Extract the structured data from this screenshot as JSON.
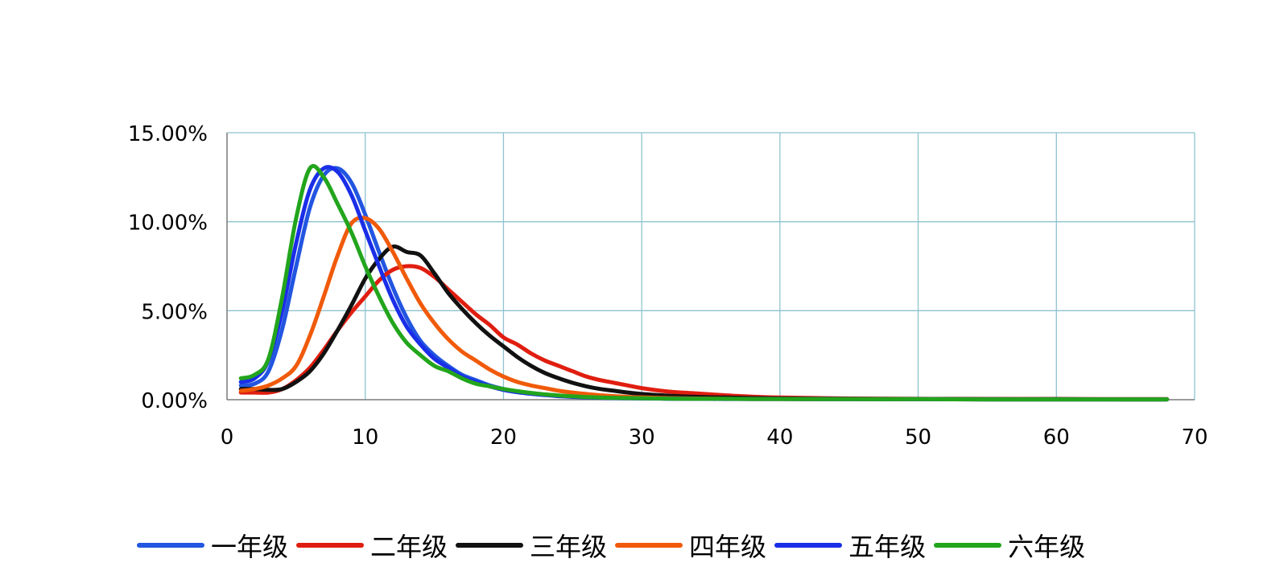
{
  "chart_data": {
    "type": "line",
    "title": "",
    "xlabel": "",
    "ylabel": "",
    "xlim": [
      0,
      70
    ],
    "ylim": [
      0,
      15
    ],
    "x_ticks": [
      "0",
      "10",
      "20",
      "30",
      "40",
      "50",
      "60",
      "70"
    ],
    "y_ticks": [
      "0.00%",
      "5.00%",
      "10.00%",
      "15.00%"
    ],
    "grid": true,
    "legend_position": "bottom",
    "x": [
      1,
      2,
      3,
      4,
      5,
      6,
      7,
      8,
      9,
      10,
      11,
      12,
      13,
      14,
      15,
      16,
      17,
      18,
      19,
      20,
      21,
      22,
      23,
      24,
      25,
      26,
      27,
      28,
      29,
      30,
      32,
      34,
      36,
      38,
      40,
      45,
      50,
      55,
      60,
      65,
      68
    ],
    "series": [
      {
        "name": "一年级",
        "color": "#2255e0",
        "values": [
          0.8,
          0.9,
          1.6,
          4.0,
          7.5,
          10.8,
          12.6,
          13.0,
          12.2,
          10.4,
          8.3,
          6.3,
          4.6,
          3.3,
          2.5,
          1.9,
          1.4,
          1.1,
          0.8,
          0.6,
          0.45,
          0.35,
          0.28,
          0.22,
          0.18,
          0.15,
          0.12,
          0.1,
          0.09,
          0.08,
          0.06,
          0.05,
          0.05,
          0.04,
          0.04,
          0.03,
          0.03,
          0.02,
          0.02,
          0.02,
          0.02
        ]
      },
      {
        "name": "二年级",
        "color": "#e01e10",
        "values": [
          0.4,
          0.4,
          0.4,
          0.6,
          1.1,
          1.8,
          2.8,
          3.9,
          4.9,
          5.8,
          6.7,
          7.3,
          7.5,
          7.4,
          6.9,
          6.2,
          5.5,
          4.8,
          4.2,
          3.5,
          3.1,
          2.6,
          2.2,
          1.9,
          1.6,
          1.3,
          1.1,
          0.95,
          0.8,
          0.65,
          0.45,
          0.35,
          0.25,
          0.17,
          0.12,
          0.07,
          0.05,
          0.04,
          0.04,
          0.03,
          0.03
        ]
      },
      {
        "name": "三年级",
        "color": "#111111",
        "values": [
          0.6,
          0.6,
          0.55,
          0.6,
          1.0,
          1.6,
          2.6,
          3.9,
          5.3,
          6.8,
          7.9,
          8.6,
          8.3,
          8.1,
          7.1,
          6.0,
          5.1,
          4.3,
          3.6,
          3.0,
          2.4,
          1.9,
          1.5,
          1.2,
          0.95,
          0.75,
          0.6,
          0.5,
          0.4,
          0.32,
          0.22,
          0.16,
          0.12,
          0.09,
          0.07,
          0.05,
          0.04,
          0.03,
          0.03,
          0.02,
          0.02
        ]
      },
      {
        "name": "四年级",
        "color": "#f05a0a",
        "values": [
          0.5,
          0.6,
          0.8,
          1.2,
          1.9,
          3.6,
          5.8,
          8.1,
          9.9,
          10.2,
          9.6,
          8.3,
          6.8,
          5.4,
          4.3,
          3.4,
          2.7,
          2.2,
          1.7,
          1.3,
          1.0,
          0.8,
          0.65,
          0.5,
          0.4,
          0.32,
          0.25,
          0.2,
          0.16,
          0.13,
          0.09,
          0.07,
          0.05,
          0.04,
          0.04,
          0.03,
          0.03,
          0.02,
          0.02,
          0.02,
          0.02
        ]
      },
      {
        "name": "五年级",
        "color": "#1a2ee8",
        "values": [
          1.0,
          1.2,
          2.2,
          5.0,
          8.8,
          11.8,
          13.0,
          12.8,
          11.5,
          9.5,
          7.5,
          5.6,
          4.1,
          3.1,
          2.3,
          1.8,
          1.3,
          1.0,
          0.75,
          0.55,
          0.42,
          0.33,
          0.26,
          0.2,
          0.16,
          0.13,
          0.11,
          0.09,
          0.08,
          0.07,
          0.06,
          0.05,
          0.04,
          0.04,
          0.04,
          0.03,
          0.03,
          0.02,
          0.02,
          0.02,
          0.02
        ]
      },
      {
        "name": "六年级",
        "color": "#22a51c",
        "values": [
          1.2,
          1.4,
          2.3,
          5.8,
          10.2,
          13.0,
          12.5,
          11.0,
          9.4,
          7.5,
          5.8,
          4.3,
          3.2,
          2.5,
          1.9,
          1.6,
          1.2,
          0.9,
          0.75,
          0.6,
          0.48,
          0.38,
          0.3,
          0.24,
          0.19,
          0.15,
          0.12,
          0.1,
          0.09,
          0.08,
          0.06,
          0.05,
          0.05,
          0.04,
          0.04,
          0.03,
          0.03,
          0.02,
          0.02,
          0.02,
          0.02
        ]
      }
    ]
  }
}
